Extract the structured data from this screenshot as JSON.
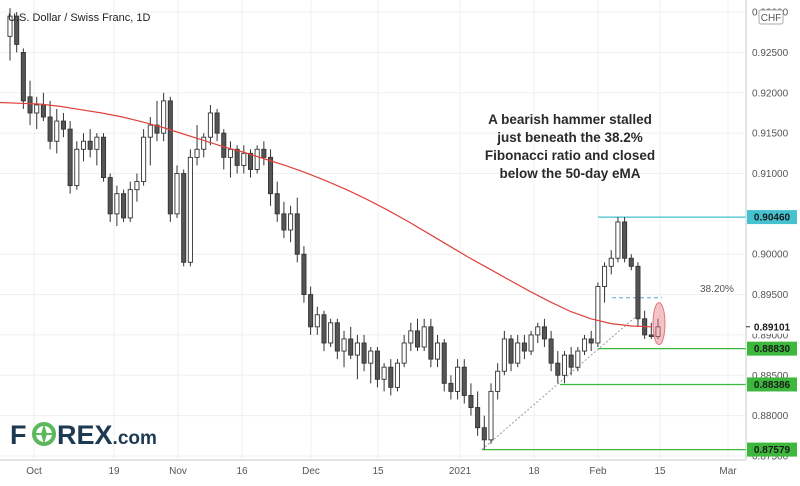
{
  "chart_data": {
    "type": "candlestick",
    "title": "U.S. Dollar / Swiss Franc, 1D",
    "currency_badge": "CHF",
    "x_labels": [
      "Oct",
      "19",
      "Nov",
      "16",
      "Dec",
      "15",
      "2021",
      "18",
      "Feb",
      "15",
      "Mar"
    ],
    "y_ticks": [
      "0.93000",
      "0.92500",
      "0.92000",
      "0.91500",
      "0.91000",
      "0.90000",
      "0.89500",
      "0.89000",
      "0.88500",
      "0.88000",
      "0.87500"
    ],
    "ylim": [
      0.8745,
      0.9315
    ],
    "grid": true,
    "candles": [
      {
        "o": 0.927,
        "h": 0.9305,
        "l": 0.924,
        "c": 0.9295
      },
      {
        "o": 0.9295,
        "h": 0.93,
        "l": 0.925,
        "c": 0.926
      },
      {
        "o": 0.925,
        "h": 0.9255,
        "l": 0.918,
        "c": 0.919
      },
      {
        "o": 0.9195,
        "h": 0.9215,
        "l": 0.916,
        "c": 0.9175
      },
      {
        "o": 0.9175,
        "h": 0.9195,
        "l": 0.9155,
        "c": 0.9185
      },
      {
        "o": 0.9185,
        "h": 0.92,
        "l": 0.9165,
        "c": 0.917
      },
      {
        "o": 0.917,
        "h": 0.919,
        "l": 0.913,
        "c": 0.914
      },
      {
        "o": 0.914,
        "h": 0.918,
        "l": 0.9125,
        "c": 0.9165
      },
      {
        "o": 0.9165,
        "h": 0.9175,
        "l": 0.9145,
        "c": 0.9155
      },
      {
        "o": 0.9155,
        "h": 0.9165,
        "l": 0.9075,
        "c": 0.9085
      },
      {
        "o": 0.9085,
        "h": 0.914,
        "l": 0.908,
        "c": 0.913
      },
      {
        "o": 0.913,
        "h": 0.915,
        "l": 0.9115,
        "c": 0.914
      },
      {
        "o": 0.914,
        "h": 0.9155,
        "l": 0.912,
        "c": 0.913
      },
      {
        "o": 0.913,
        "h": 0.915,
        "l": 0.911,
        "c": 0.9145
      },
      {
        "o": 0.9145,
        "h": 0.915,
        "l": 0.909,
        "c": 0.9095
      },
      {
        "o": 0.9095,
        "h": 0.91,
        "l": 0.904,
        "c": 0.905
      },
      {
        "o": 0.905,
        "h": 0.9085,
        "l": 0.9035,
        "c": 0.9075
      },
      {
        "o": 0.9075,
        "h": 0.908,
        "l": 0.904,
        "c": 0.9045
      },
      {
        "o": 0.9045,
        "h": 0.909,
        "l": 0.904,
        "c": 0.908
      },
      {
        "o": 0.908,
        "h": 0.91,
        "l": 0.9065,
        "c": 0.909
      },
      {
        "o": 0.909,
        "h": 0.9155,
        "l": 0.9085,
        "c": 0.9145
      },
      {
        "o": 0.9145,
        "h": 0.917,
        "l": 0.911,
        "c": 0.916
      },
      {
        "o": 0.916,
        "h": 0.919,
        "l": 0.914,
        "c": 0.915
      },
      {
        "o": 0.915,
        "h": 0.92,
        "l": 0.914,
        "c": 0.919
      },
      {
        "o": 0.919,
        "h": 0.9195,
        "l": 0.904,
        "c": 0.905
      },
      {
        "o": 0.905,
        "h": 0.911,
        "l": 0.9045,
        "c": 0.91
      },
      {
        "o": 0.91,
        "h": 0.9105,
        "l": 0.8985,
        "c": 0.899
      },
      {
        "o": 0.899,
        "h": 0.913,
        "l": 0.8985,
        "c": 0.912
      },
      {
        "o": 0.912,
        "h": 0.916,
        "l": 0.911,
        "c": 0.913
      },
      {
        "o": 0.913,
        "h": 0.915,
        "l": 0.912,
        "c": 0.9145
      },
      {
        "o": 0.9145,
        "h": 0.9185,
        "l": 0.9135,
        "c": 0.9175
      },
      {
        "o": 0.9175,
        "h": 0.918,
        "l": 0.914,
        "c": 0.915
      },
      {
        "o": 0.915,
        "h": 0.9155,
        "l": 0.9105,
        "c": 0.912
      },
      {
        "o": 0.912,
        "h": 0.914,
        "l": 0.9095,
        "c": 0.913
      },
      {
        "o": 0.913,
        "h": 0.9135,
        "l": 0.91,
        "c": 0.911
      },
      {
        "o": 0.911,
        "h": 0.9135,
        "l": 0.91,
        "c": 0.9125
      },
      {
        "o": 0.9125,
        "h": 0.913,
        "l": 0.9095,
        "c": 0.9105
      },
      {
        "o": 0.9105,
        "h": 0.9135,
        "l": 0.91,
        "c": 0.913
      },
      {
        "o": 0.913,
        "h": 0.914,
        "l": 0.911,
        "c": 0.912
      },
      {
        "o": 0.912,
        "h": 0.913,
        "l": 0.906,
        "c": 0.9075
      },
      {
        "o": 0.9075,
        "h": 0.909,
        "l": 0.904,
        "c": 0.905
      },
      {
        "o": 0.905,
        "h": 0.9065,
        "l": 0.902,
        "c": 0.903
      },
      {
        "o": 0.903,
        "h": 0.906,
        "l": 0.9015,
        "c": 0.905
      },
      {
        "o": 0.905,
        "h": 0.907,
        "l": 0.899,
        "c": 0.9
      },
      {
        "o": 0.9,
        "h": 0.901,
        "l": 0.894,
        "c": 0.895
      },
      {
        "o": 0.895,
        "h": 0.896,
        "l": 0.89,
        "c": 0.891
      },
      {
        "o": 0.891,
        "h": 0.8935,
        "l": 0.89,
        "c": 0.8925
      },
      {
        "o": 0.8925,
        "h": 0.893,
        "l": 0.888,
        "c": 0.889
      },
      {
        "o": 0.889,
        "h": 0.892,
        "l": 0.8885,
        "c": 0.8915
      },
      {
        "o": 0.8915,
        "h": 0.892,
        "l": 0.887,
        "c": 0.888
      },
      {
        "o": 0.888,
        "h": 0.8905,
        "l": 0.886,
        "c": 0.8895
      },
      {
        "o": 0.8895,
        "h": 0.891,
        "l": 0.887,
        "c": 0.8875
      },
      {
        "o": 0.8875,
        "h": 0.89,
        "l": 0.8845,
        "c": 0.889
      },
      {
        "o": 0.889,
        "h": 0.89,
        "l": 0.8855,
        "c": 0.8865
      },
      {
        "o": 0.8865,
        "h": 0.8885,
        "l": 0.884,
        "c": 0.888
      },
      {
        "o": 0.888,
        "h": 0.8885,
        "l": 0.8835,
        "c": 0.8845
      },
      {
        "o": 0.8845,
        "h": 0.8865,
        "l": 0.883,
        "c": 0.886
      },
      {
        "o": 0.886,
        "h": 0.887,
        "l": 0.8825,
        "c": 0.8835
      },
      {
        "o": 0.8835,
        "h": 0.887,
        "l": 0.883,
        "c": 0.8865
      },
      {
        "o": 0.8865,
        "h": 0.89,
        "l": 0.886,
        "c": 0.889
      },
      {
        "o": 0.889,
        "h": 0.8915,
        "l": 0.888,
        "c": 0.8905
      },
      {
        "o": 0.8905,
        "h": 0.892,
        "l": 0.888,
        "c": 0.8885
      },
      {
        "o": 0.8885,
        "h": 0.892,
        "l": 0.888,
        "c": 0.891
      },
      {
        "o": 0.891,
        "h": 0.892,
        "l": 0.886,
        "c": 0.887
      },
      {
        "o": 0.887,
        "h": 0.89,
        "l": 0.886,
        "c": 0.889
      },
      {
        "o": 0.889,
        "h": 0.8895,
        "l": 0.883,
        "c": 0.884
      },
      {
        "o": 0.884,
        "h": 0.885,
        "l": 0.882,
        "c": 0.883
      },
      {
        "o": 0.883,
        "h": 0.887,
        "l": 0.882,
        "c": 0.886
      },
      {
        "o": 0.886,
        "h": 0.887,
        "l": 0.8815,
        "c": 0.8825
      },
      {
        "o": 0.8825,
        "h": 0.884,
        "l": 0.88,
        "c": 0.881
      },
      {
        "o": 0.881,
        "h": 0.883,
        "l": 0.8775,
        "c": 0.8785
      },
      {
        "o": 0.8785,
        "h": 0.88,
        "l": 0.8758,
        "c": 0.877
      },
      {
        "o": 0.877,
        "h": 0.884,
        "l": 0.8765,
        "c": 0.883
      },
      {
        "o": 0.883,
        "h": 0.8865,
        "l": 0.882,
        "c": 0.8855
      },
      {
        "o": 0.8855,
        "h": 0.8905,
        "l": 0.885,
        "c": 0.8895
      },
      {
        "o": 0.8895,
        "h": 0.89,
        "l": 0.8855,
        "c": 0.8865
      },
      {
        "o": 0.8865,
        "h": 0.89,
        "l": 0.886,
        "c": 0.889
      },
      {
        "o": 0.889,
        "h": 0.89,
        "l": 0.887,
        "c": 0.888
      },
      {
        "o": 0.888,
        "h": 0.8905,
        "l": 0.8875,
        "c": 0.89
      },
      {
        "o": 0.89,
        "h": 0.8915,
        "l": 0.889,
        "c": 0.891
      },
      {
        "o": 0.891,
        "h": 0.892,
        "l": 0.8885,
        "c": 0.8895
      },
      {
        "o": 0.8895,
        "h": 0.8905,
        "l": 0.8855,
        "c": 0.8865
      },
      {
        "o": 0.8865,
        "h": 0.888,
        "l": 0.884,
        "c": 0.885
      },
      {
        "o": 0.885,
        "h": 0.888,
        "l": 0.884,
        "c": 0.8875
      },
      {
        "o": 0.8875,
        "h": 0.8885,
        "l": 0.885,
        "c": 0.886
      },
      {
        "o": 0.886,
        "h": 0.8885,
        "l": 0.8855,
        "c": 0.888
      },
      {
        "o": 0.888,
        "h": 0.89,
        "l": 0.8875,
        "c": 0.8895
      },
      {
        "o": 0.8895,
        "h": 0.8905,
        "l": 0.888,
        "c": 0.889
      },
      {
        "o": 0.889,
        "h": 0.8965,
        "l": 0.8885,
        "c": 0.896
      },
      {
        "o": 0.896,
        "h": 0.899,
        "l": 0.894,
        "c": 0.8985
      },
      {
        "o": 0.8985,
        "h": 0.9005,
        "l": 0.8975,
        "c": 0.8995
      },
      {
        "o": 0.8995,
        "h": 0.9046,
        "l": 0.899,
        "c": 0.904
      },
      {
        "o": 0.904,
        "h": 0.9046,
        "l": 0.899,
        "c": 0.8995
      },
      {
        "o": 0.8995,
        "h": 0.9,
        "l": 0.898,
        "c": 0.8985
      },
      {
        "o": 0.8985,
        "h": 0.899,
        "l": 0.891,
        "c": 0.892
      },
      {
        "o": 0.892,
        "h": 0.893,
        "l": 0.8895,
        "c": 0.89
      },
      {
        "o": 0.89,
        "h": 0.8915,
        "l": 0.8895,
        "c": 0.8898
      },
      {
        "o": 0.8898,
        "h": 0.892,
        "l": 0.8895,
        "c": 0.891
      }
    ],
    "ema": {
      "name": "50-day eMA",
      "color": "#e0413a",
      "values": [
        0.9188,
        0.9187,
        0.9186,
        0.9183,
        0.9179,
        0.9175,
        0.917,
        0.9164,
        0.9157,
        0.9149,
        0.9141,
        0.9133,
        0.9126,
        0.9118,
        0.911,
        0.9101,
        0.9091,
        0.908,
        0.9068,
        0.9055,
        0.9041,
        0.9026,
        0.9011,
        0.8996,
        0.8982,
        0.8968,
        0.8954,
        0.8941,
        0.8929,
        0.892,
        0.8914,
        0.8911,
        0.891
      ]
    },
    "levels": [
      {
        "label": "0.90460",
        "value": 0.9046,
        "color": "#45c1cf",
        "line": "solid"
      },
      {
        "label": "0.88830",
        "value": 0.8883,
        "color": "#3cb83c",
        "line": "solid"
      },
      {
        "label": "0.88386",
        "value": 0.88386,
        "color": "#3cb83c",
        "line": "solid"
      },
      {
        "label": "0.87579",
        "value": 0.87579,
        "color": "#3cb83c",
        "line": "solid"
      }
    ],
    "current_price": {
      "label": "0.89101",
      "value": 0.89101
    },
    "fib": {
      "label": "38.20%",
      "value": 0.8946,
      "color": "#5aa6d6"
    },
    "annotation": [
      "A bearish hammer stalled",
      "just beneath the 38.2%",
      "Fibonacci ratio and closed",
      "below the 50-day eMA"
    ]
  },
  "logo": {
    "text_a": "F",
    "text_b": "REX",
    "text_c": ".com",
    "color_dark": "#1d3a52",
    "color_green": "#5cb85c"
  }
}
